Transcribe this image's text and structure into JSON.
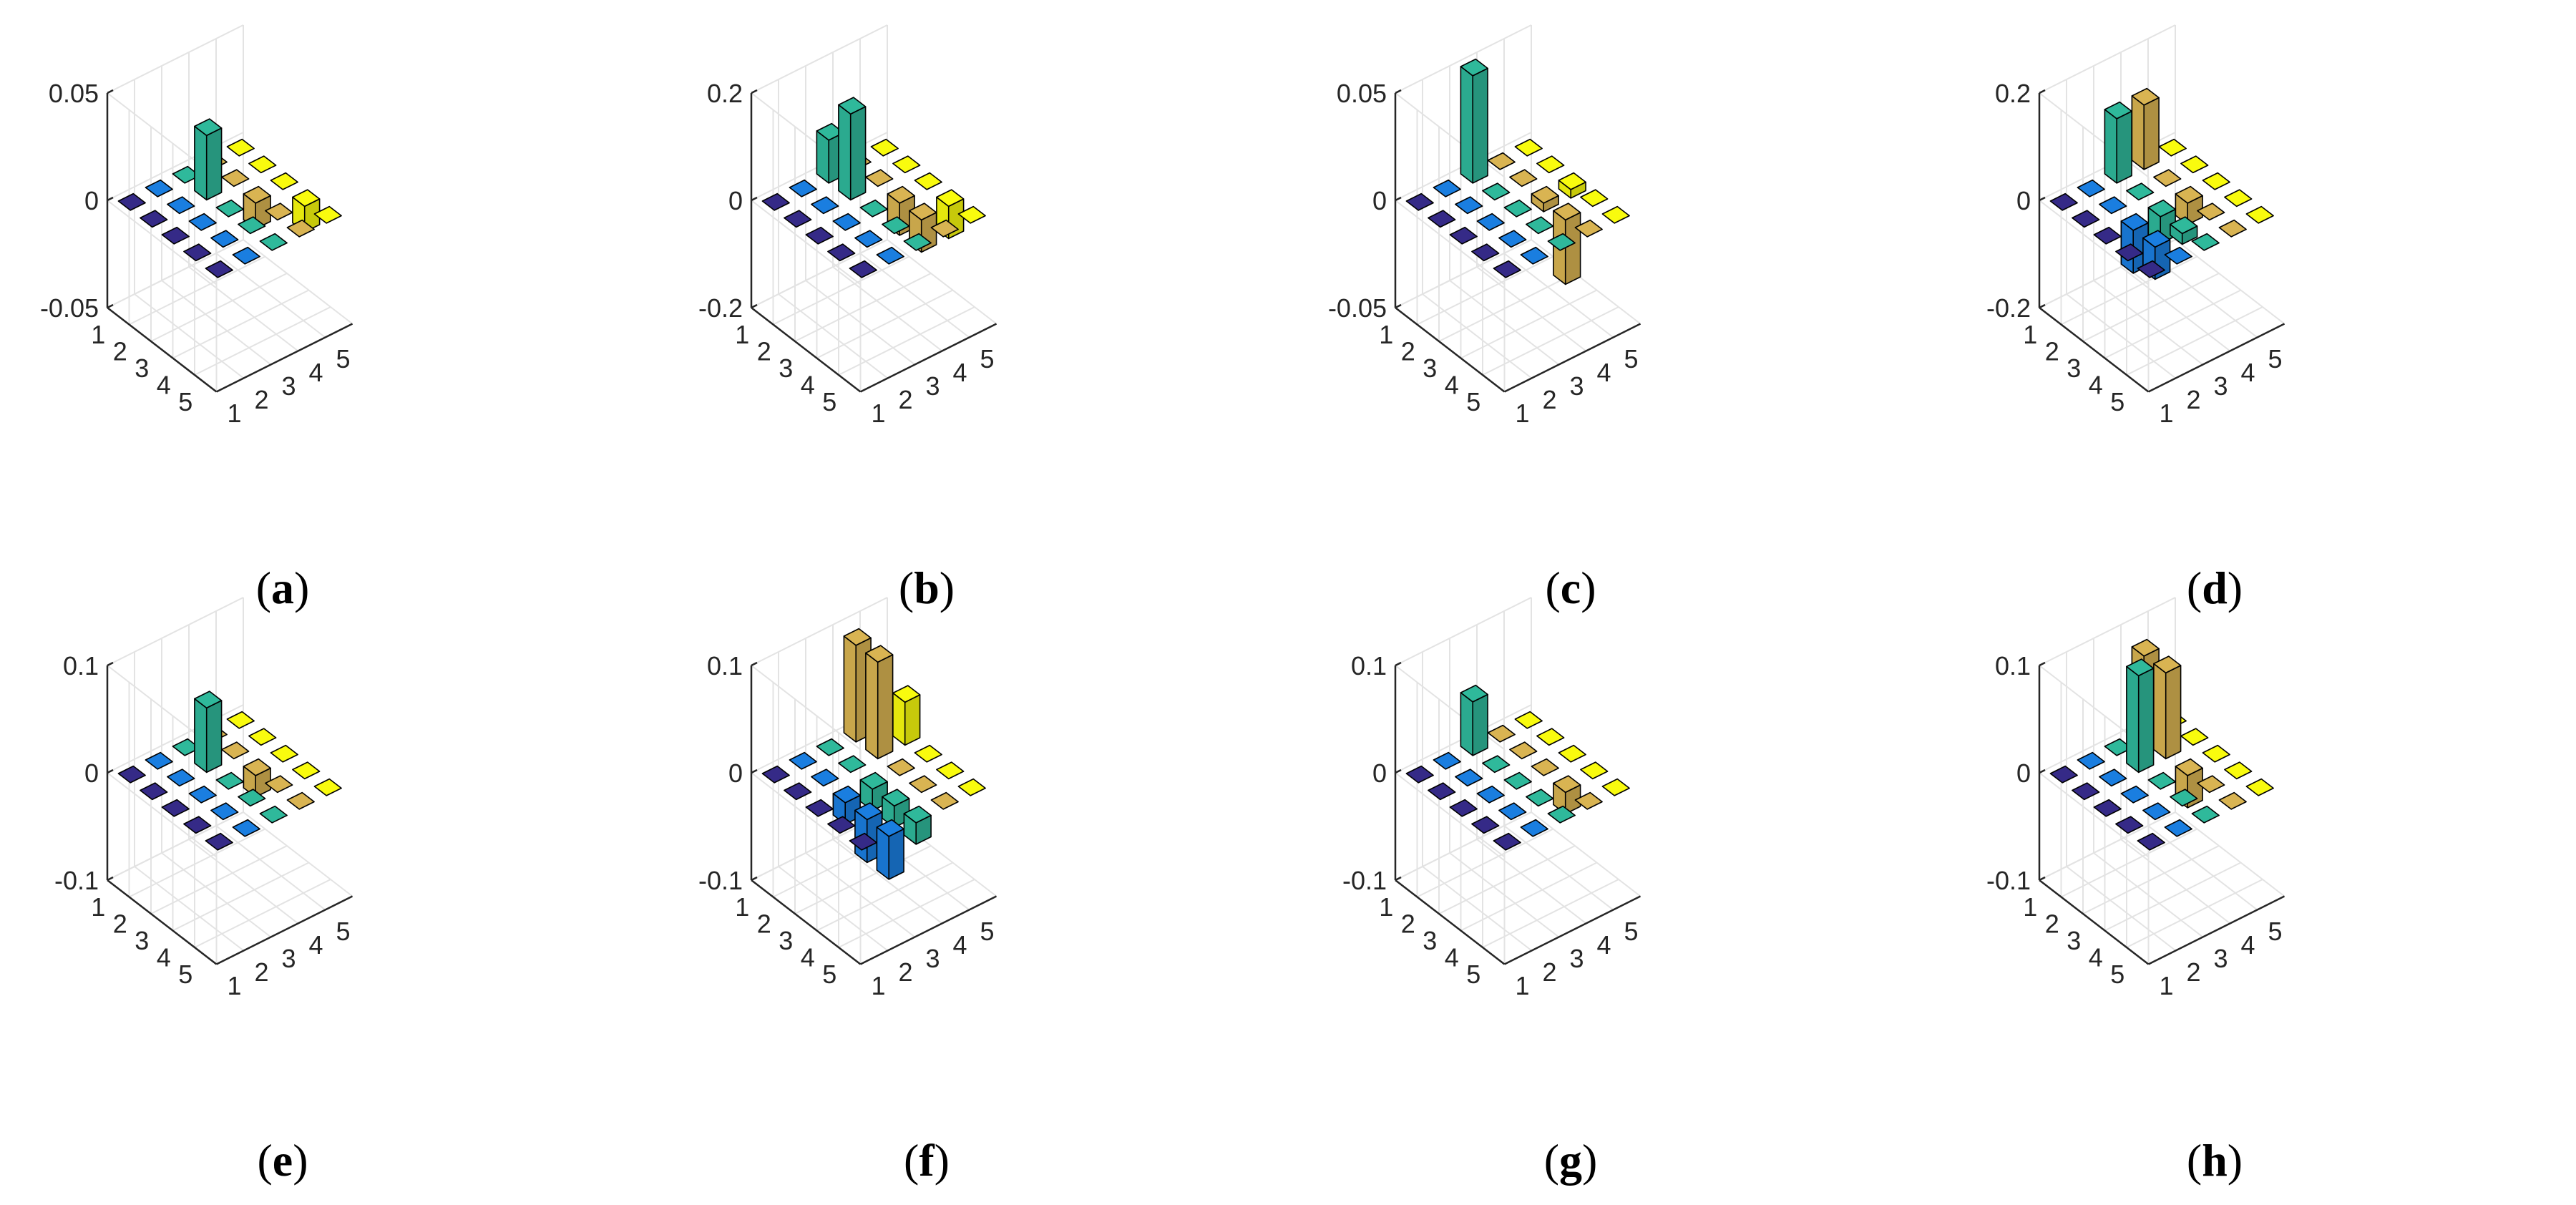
{
  "chart_data": [
    {
      "label": "a",
      "type": "bar3",
      "zticks": [
        "0.05",
        "0",
        "-0.05"
      ],
      "zlim": [
        -0.05,
        0.05
      ],
      "rows": [
        "1",
        "2",
        "3",
        "4",
        "5"
      ],
      "cols": [
        "1",
        "2",
        "3",
        "4",
        "5"
      ],
      "values": [
        [
          0,
          0,
          0,
          0,
          0
        ],
        [
          0,
          0,
          0.03,
          0,
          0
        ],
        [
          0,
          0,
          0,
          -0.012,
          0
        ],
        [
          0,
          0,
          0,
          0,
          -0.012
        ],
        [
          0,
          0,
          0,
          0,
          0
        ]
      ]
    },
    {
      "label": "b",
      "type": "bar3",
      "zticks": [
        "0.2",
        "0",
        "-0.2"
      ],
      "zlim": [
        -0.2,
        0.2
      ],
      "rows": [
        "1",
        "2",
        "3",
        "4",
        "5"
      ],
      "cols": [
        "1",
        "2",
        "3",
        "4",
        "5"
      ],
      "values": [
        [
          0,
          0,
          0.08,
          0,
          0
        ],
        [
          0,
          0,
          0.16,
          0,
          0
        ],
        [
          0,
          0,
          0,
          -0.06,
          0
        ],
        [
          0,
          0,
          0,
          -0.06,
          -0.06
        ],
        [
          0,
          0,
          0,
          0,
          0
        ]
      ]
    },
    {
      "label": "c",
      "type": "bar3",
      "zticks": [
        "0.05",
        "0",
        "-0.05"
      ],
      "zlim": [
        -0.05,
        0.05
      ],
      "rows": [
        "1",
        "2",
        "3",
        "4",
        "5"
      ],
      "cols": [
        "1",
        "2",
        "3",
        "4",
        "5"
      ],
      "values": [
        [
          0,
          0,
          0.05,
          0,
          0
        ],
        [
          0,
          0,
          0,
          0,
          0
        ],
        [
          0,
          0,
          0,
          -0.004,
          -0.004
        ],
        [
          0,
          0,
          0,
          -0.03,
          0
        ],
        [
          0,
          0,
          0,
          0,
          0
        ]
      ]
    },
    {
      "label": "d",
      "type": "bar3",
      "zticks": [
        "0.2",
        "0",
        "-0.2"
      ],
      "zlim": [
        -0.2,
        0.2
      ],
      "rows": [
        "1",
        "2",
        "3",
        "4",
        "5"
      ],
      "cols": [
        "1",
        "2",
        "3",
        "4",
        "5"
      ],
      "values": [
        [
          0,
          0,
          0.12,
          0.12,
          0
        ],
        [
          0,
          0,
          0,
          0,
          0
        ],
        [
          0,
          -0.08,
          -0.05,
          -0.04,
          0
        ],
        [
          0,
          -0.06,
          -0.02,
          0,
          0
        ],
        [
          0,
          0,
          0,
          0,
          0
        ]
      ]
    },
    {
      "label": "e",
      "type": "bar3",
      "zticks": [
        "0.1",
        "0",
        "-0.1"
      ],
      "zlim": [
        -0.1,
        0.1
      ],
      "rows": [
        "1",
        "2",
        "3",
        "4",
        "5"
      ],
      "cols": [
        "1",
        "2",
        "3",
        "4",
        "5"
      ],
      "values": [
        [
          0,
          0,
          0,
          0,
          0
        ],
        [
          0,
          0,
          0.06,
          0,
          0
        ],
        [
          0,
          0,
          0,
          -0.02,
          0
        ],
        [
          0,
          0,
          0,
          0,
          0
        ],
        [
          0,
          0,
          0,
          0,
          0
        ]
      ]
    },
    {
      "label": "f",
      "type": "bar3",
      "zticks": [
        "0.1",
        "0",
        "-0.1"
      ],
      "zlim": [
        -0.1,
        0.1
      ],
      "rows": [
        "1",
        "2",
        "3",
        "4",
        "5"
      ],
      "cols": [
        "1",
        "2",
        "3",
        "4",
        "5"
      ],
      "values": [
        [
          0,
          0,
          0,
          0.09,
          0
        ],
        [
          0,
          0,
          0,
          0.09,
          0.04
        ],
        [
          0,
          -0.02,
          -0.02,
          0,
          0
        ],
        [
          0,
          -0.04,
          -0.02,
          0,
          0
        ],
        [
          0,
          -0.04,
          -0.02,
          0,
          0
        ]
      ]
    },
    {
      "label": "g",
      "type": "bar3",
      "zticks": [
        "0.1",
        "0",
        "-0.1"
      ],
      "zlim": [
        -0.1,
        0.1
      ],
      "rows": [
        "1",
        "2",
        "3",
        "4",
        "5"
      ],
      "cols": [
        "1",
        "2",
        "3",
        "4",
        "5"
      ],
      "values": [
        [
          0,
          0,
          0.05,
          0,
          0
        ],
        [
          0,
          0,
          0,
          0,
          0
        ],
        [
          0,
          0,
          0,
          0,
          0
        ],
        [
          0,
          0,
          0,
          -0.02,
          0
        ],
        [
          0,
          0,
          0,
          0,
          0
        ]
      ]
    },
    {
      "label": "h",
      "type": "bar3",
      "zticks": [
        "0.1",
        "0",
        "-0.1"
      ],
      "zlim": [
        -0.1,
        0.1
      ],
      "rows": [
        "1",
        "2",
        "3",
        "4",
        "5"
      ],
      "cols": [
        "1",
        "2",
        "3",
        "4",
        "5"
      ],
      "values": [
        [
          0,
          0,
          0,
          0.08,
          0
        ],
        [
          0,
          0,
          0.09,
          0.08,
          0
        ],
        [
          0,
          0,
          0,
          -0.03,
          0
        ],
        [
          0,
          0,
          0,
          0,
          0
        ],
        [
          0,
          0,
          0,
          0,
          0
        ]
      ]
    }
  ],
  "colors": [
    "#352a87",
    "#1a7ee0",
    "#2fb99b",
    "#d9b452",
    "#f9fb0e"
  ]
}
